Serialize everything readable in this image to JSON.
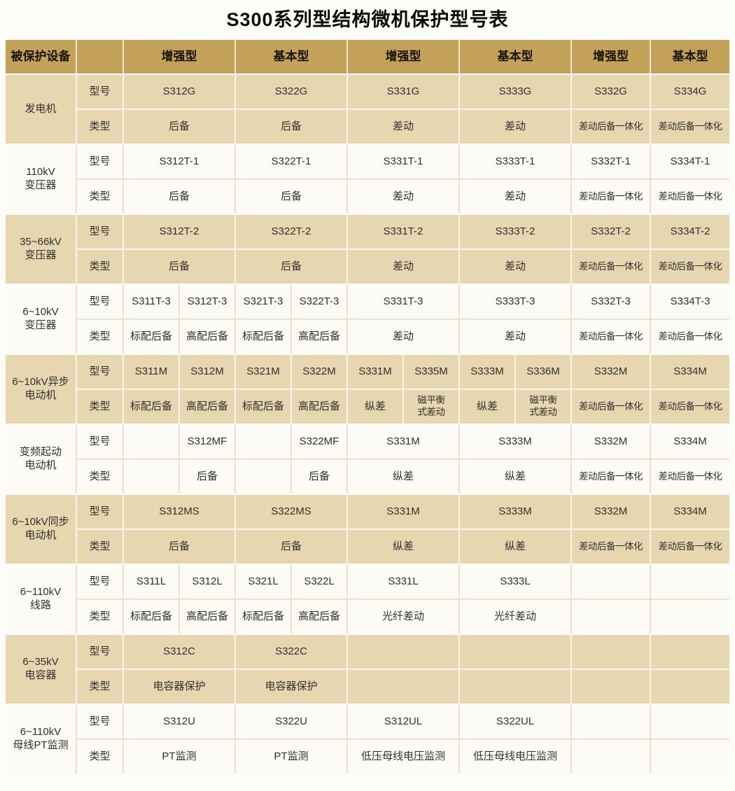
{
  "title": "S300系列型结构微机保护型号表",
  "colors": {
    "header_bg": "#c4a158",
    "tan_cell": "#e7d7b1",
    "white_cell": "#fdfbf5",
    "text": "#32302c"
  },
  "header": {
    "device_column": "被保护设备",
    "label_column": "",
    "sections": [
      {
        "label": "增强型",
        "span": 2
      },
      {
        "label": "基本型",
        "span": 2
      },
      {
        "label": "增强型",
        "span": 2
      },
      {
        "label": "基本型",
        "span": 2
      },
      {
        "label": "增强型",
        "span": 1
      },
      {
        "label": "基本型",
        "span": 1
      }
    ]
  },
  "row_labels": {
    "model": "型号",
    "type": "类型"
  },
  "groups": [
    {
      "device": "发电机",
      "tone": "tan",
      "model": [
        {
          "t": "S312G",
          "s": 2
        },
        {
          "t": "S322G",
          "s": 2
        },
        {
          "t": "S331G",
          "s": 2
        },
        {
          "t": "S333G",
          "s": 2
        },
        {
          "t": "S332G",
          "s": 1
        },
        {
          "t": "S334G",
          "s": 1
        }
      ],
      "type": [
        {
          "t": "后备",
          "s": 2
        },
        {
          "t": "后备",
          "s": 2
        },
        {
          "t": "差动",
          "s": 2
        },
        {
          "t": "差动",
          "s": 2
        },
        {
          "t": "差动后备一体化",
          "s": 1
        },
        {
          "t": "差动后备一体化",
          "s": 1
        }
      ]
    },
    {
      "device": "110kV\n变压器",
      "tone": "white",
      "model": [
        {
          "t": "S312T-1",
          "s": 2
        },
        {
          "t": "S322T-1",
          "s": 2
        },
        {
          "t": "S331T-1",
          "s": 2
        },
        {
          "t": "S333T-1",
          "s": 2
        },
        {
          "t": "S332T-1",
          "s": 1
        },
        {
          "t": "S334T-1",
          "s": 1
        }
      ],
      "type": [
        {
          "t": "后备",
          "s": 2
        },
        {
          "t": "后备",
          "s": 2
        },
        {
          "t": "差动",
          "s": 2
        },
        {
          "t": "差动",
          "s": 2
        },
        {
          "t": "差动后备一体化",
          "s": 1
        },
        {
          "t": "差动后备一体化",
          "s": 1
        }
      ]
    },
    {
      "device": "35~66kV\n变压器",
      "tone": "tan",
      "model": [
        {
          "t": "S312T-2",
          "s": 2
        },
        {
          "t": "S322T-2",
          "s": 2
        },
        {
          "t": "S331T-2",
          "s": 2
        },
        {
          "t": "S333T-2",
          "s": 2
        },
        {
          "t": "S332T-2",
          "s": 1
        },
        {
          "t": "S334T-2",
          "s": 1
        }
      ],
      "type": [
        {
          "t": "后备",
          "s": 2
        },
        {
          "t": "后备",
          "s": 2
        },
        {
          "t": "差动",
          "s": 2
        },
        {
          "t": "差动",
          "s": 2
        },
        {
          "t": "差动后备一体化",
          "s": 1
        },
        {
          "t": "差动后备一体化",
          "s": 1
        }
      ]
    },
    {
      "device": "6~10kV\n变压器",
      "tone": "white",
      "model": [
        {
          "t": "S311T-3",
          "s": 1
        },
        {
          "t": "S312T-3",
          "s": 1
        },
        {
          "t": "S321T-3",
          "s": 1
        },
        {
          "t": "S322T-3",
          "s": 1
        },
        {
          "t": "S331T-3",
          "s": 2
        },
        {
          "t": "S333T-3",
          "s": 2
        },
        {
          "t": "S332T-3",
          "s": 1
        },
        {
          "t": "S334T-3",
          "s": 1
        }
      ],
      "type": [
        {
          "t": "标配后备",
          "s": 1
        },
        {
          "t": "高配后备",
          "s": 1
        },
        {
          "t": "标配后备",
          "s": 1
        },
        {
          "t": "高配后备",
          "s": 1
        },
        {
          "t": "差动",
          "s": 2
        },
        {
          "t": "差动",
          "s": 2
        },
        {
          "t": "差动后备一体化",
          "s": 1
        },
        {
          "t": "差动后备一体化",
          "s": 1
        }
      ]
    },
    {
      "device": "6~10kV异步\n电动机",
      "tone": "tan",
      "model": [
        {
          "t": "S311M",
          "s": 1
        },
        {
          "t": "S312M",
          "s": 1
        },
        {
          "t": "S321M",
          "s": 1
        },
        {
          "t": "S322M",
          "s": 1
        },
        {
          "t": "S331M",
          "s": 1
        },
        {
          "t": "S335M",
          "s": 1
        },
        {
          "t": "S333M",
          "s": 1
        },
        {
          "t": "S336M",
          "s": 1
        },
        {
          "t": "S332M",
          "s": 1
        },
        {
          "t": "S334M",
          "s": 1
        }
      ],
      "type": [
        {
          "t": "标配后备",
          "s": 1
        },
        {
          "t": "高配后备",
          "s": 1
        },
        {
          "t": "标配后备",
          "s": 1
        },
        {
          "t": "高配后备",
          "s": 1
        },
        {
          "t": "纵差",
          "s": 1
        },
        {
          "t": "磁平衡\n式差动",
          "s": 1
        },
        {
          "t": "纵差",
          "s": 1
        },
        {
          "t": "磁平衡\n式差动",
          "s": 1
        },
        {
          "t": "差动后备一体化",
          "s": 1
        },
        {
          "t": "差动后备一体化",
          "s": 1
        }
      ]
    },
    {
      "device": "变频起动\n电动机",
      "tone": "white",
      "model": [
        {
          "t": "",
          "s": 1
        },
        {
          "t": "S312MF",
          "s": 1
        },
        {
          "t": "",
          "s": 1
        },
        {
          "t": "S322MF",
          "s": 1
        },
        {
          "t": "S331M",
          "s": 2
        },
        {
          "t": "S333M",
          "s": 2
        },
        {
          "t": "S332M",
          "s": 1
        },
        {
          "t": "S334M",
          "s": 1
        }
      ],
      "type": [
        {
          "t": "",
          "s": 1
        },
        {
          "t": "后备",
          "s": 1
        },
        {
          "t": "",
          "s": 1
        },
        {
          "t": "后备",
          "s": 1
        },
        {
          "t": "纵差",
          "s": 2
        },
        {
          "t": "纵差",
          "s": 2
        },
        {
          "t": "差动后备一体化",
          "s": 1
        },
        {
          "t": "差动后备一体化",
          "s": 1
        }
      ]
    },
    {
      "device": "6~10kV同步\n电动机",
      "tone": "tan",
      "model": [
        {
          "t": "S312MS",
          "s": 2
        },
        {
          "t": "S322MS",
          "s": 2
        },
        {
          "t": "S331M",
          "s": 2
        },
        {
          "t": "S333M",
          "s": 2
        },
        {
          "t": "S332M",
          "s": 1
        },
        {
          "t": "S334M",
          "s": 1
        }
      ],
      "type": [
        {
          "t": "后备",
          "s": 2
        },
        {
          "t": "后备",
          "s": 2
        },
        {
          "t": "纵差",
          "s": 2
        },
        {
          "t": "纵差",
          "s": 2
        },
        {
          "t": "差动后备一体化",
          "s": 1
        },
        {
          "t": "差动后备一体化",
          "s": 1
        }
      ]
    },
    {
      "device": "6~110kV\n线路",
      "tone": "white",
      "model": [
        {
          "t": "S311L",
          "s": 1
        },
        {
          "t": "S312L",
          "s": 1
        },
        {
          "t": "S321L",
          "s": 1
        },
        {
          "t": "S322L",
          "s": 1
        },
        {
          "t": "S331L",
          "s": 2
        },
        {
          "t": "S333L",
          "s": 2
        },
        {
          "t": "",
          "s": 1
        },
        {
          "t": "",
          "s": 1
        }
      ],
      "type": [
        {
          "t": "标配后备",
          "s": 1
        },
        {
          "t": "高配后备",
          "s": 1
        },
        {
          "t": "标配后备",
          "s": 1
        },
        {
          "t": "高配后备",
          "s": 1
        },
        {
          "t": "光纤差动",
          "s": 2
        },
        {
          "t": "光纤差动",
          "s": 2
        },
        {
          "t": "",
          "s": 1
        },
        {
          "t": "",
          "s": 1
        }
      ]
    },
    {
      "device": "6~35kV\n电容器",
      "tone": "tan",
      "model": [
        {
          "t": "S312C",
          "s": 2
        },
        {
          "t": "S322C",
          "s": 2
        },
        {
          "t": "",
          "s": 2
        },
        {
          "t": "",
          "s": 2
        },
        {
          "t": "",
          "s": 1
        },
        {
          "t": "",
          "s": 1
        }
      ],
      "type": [
        {
          "t": "电容器保护",
          "s": 2
        },
        {
          "t": "电容器保护",
          "s": 2
        },
        {
          "t": "",
          "s": 2
        },
        {
          "t": "",
          "s": 2
        },
        {
          "t": "",
          "s": 1
        },
        {
          "t": "",
          "s": 1
        }
      ]
    },
    {
      "device": "6~110kV\n母线PT监测",
      "tone": "white",
      "model": [
        {
          "t": "S312U",
          "s": 2
        },
        {
          "t": "S322U",
          "s": 2
        },
        {
          "t": "S312UL",
          "s": 2
        },
        {
          "t": "S322UL",
          "s": 2
        },
        {
          "t": "",
          "s": 1
        },
        {
          "t": "",
          "s": 1
        }
      ],
      "type": [
        {
          "t": "PT监测",
          "s": 2
        },
        {
          "t": "PT监测",
          "s": 2
        },
        {
          "t": "低压母线电压监测",
          "s": 2
        },
        {
          "t": "低压母线电压监测",
          "s": 2
        },
        {
          "t": "",
          "s": 1
        },
        {
          "t": "",
          "s": 1
        }
      ]
    }
  ]
}
